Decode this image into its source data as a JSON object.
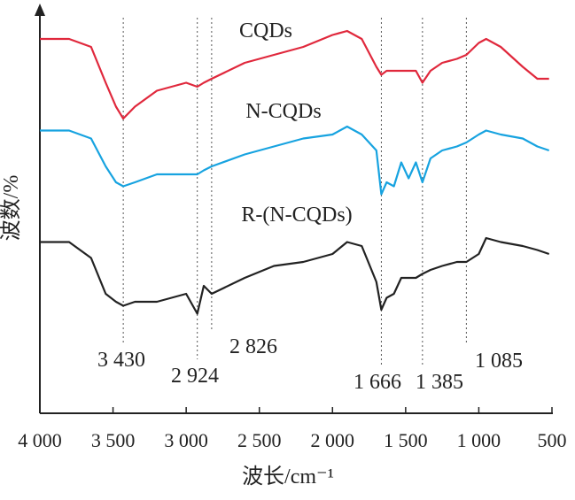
{
  "chart_data": {
    "type": "line",
    "x_label": "波长/cm⁻¹",
    "y_label": "波数/%",
    "x": [
      4000,
      3800,
      3650,
      3550,
      3480,
      3430,
      3350,
      3200,
      3000,
      2924,
      2880,
      2826,
      2600,
      2400,
      2200,
      2000,
      1900,
      1800,
      1700,
      1666,
      1630,
      1580,
      1530,
      1480,
      1430,
      1385,
      1330,
      1250,
      1150,
      1085,
      1000,
      950,
      850,
      700,
      600,
      520
    ],
    "series": [
      {
        "name": "CQDs",
        "color": "#e0283c",
        "values": [
          94,
          94,
          92,
          83,
          77,
          74,
          77,
          81,
          83,
          82,
          83,
          84,
          88,
          90,
          92,
          95,
          96,
          94,
          87,
          85,
          86,
          86,
          86,
          86,
          86,
          83,
          86,
          88,
          89,
          90,
          93,
          94,
          92,
          87,
          84,
          84
        ]
      },
      {
        "name": "N-CQDs",
        "color": "#17a3e0",
        "values": [
          71,
          71,
          69,
          62,
          58,
          57,
          58,
          60,
          60,
          60,
          61,
          62,
          65,
          67,
          69,
          70,
          72,
          70,
          66,
          55,
          58,
          57,
          63,
          59,
          63,
          58,
          64,
          66,
          67,
          68,
          70,
          71,
          70,
          69,
          67,
          66
        ]
      },
      {
        "name": "R-(N-CQDs)",
        "color": "#222222",
        "values": [
          43,
          43,
          39,
          30,
          28,
          27,
          28,
          28,
          30,
          25,
          32,
          30,
          34,
          37,
          38,
          40,
          43,
          42,
          33,
          26,
          29,
          30,
          34,
          34,
          34,
          35,
          36,
          37,
          38,
          38,
          40,
          44,
          43,
          42,
          41,
          40
        ]
      }
    ],
    "xlim": [
      4000,
      500
    ],
    "xticks": [
      {
        "value": 4000,
        "label": "4 000"
      },
      {
        "value": 3500,
        "label": "3 500"
      },
      {
        "value": 3000,
        "label": "3 000"
      },
      {
        "value": 2500,
        "label": "2 500"
      },
      {
        "value": 2000,
        "label": "2 000"
      },
      {
        "value": 1500,
        "label": "1 500"
      },
      {
        "value": 1000,
        "label": "1 000"
      },
      500
    ],
    "ylim": [
      0,
      100
    ],
    "annotations": [
      {
        "x": 3430,
        "label": "3 430"
      },
      {
        "x": 2924,
        "label": "2 924"
      },
      {
        "x": 2826,
        "label": "2 826"
      },
      {
        "x": 1666,
        "label": "1 666"
      },
      {
        "x": 1385,
        "label": "1 385"
      },
      {
        "x": 1085,
        "label": "1 085"
      }
    ]
  }
}
